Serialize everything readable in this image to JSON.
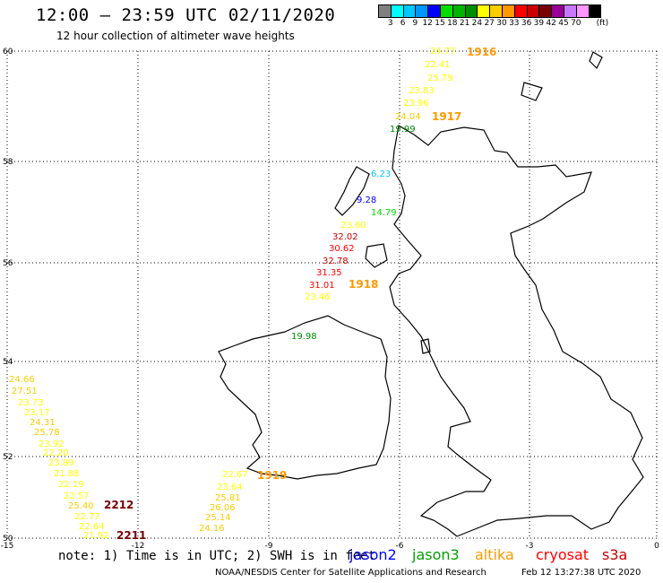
{
  "header": {
    "title": "12:00 – 23:59 UTC 02/11/2020",
    "subtitle": "12 hour collection of altimeter wave heights"
  },
  "legend": {
    "unit": "(ft)",
    "levels": [
      {
        "label": "",
        "color": "#7f7f7f"
      },
      {
        "label": "3",
        "color": "#00ffff"
      },
      {
        "label": "6",
        "color": "#00c8ff"
      },
      {
        "label": "9",
        "color": "#0096ff"
      },
      {
        "label": "12",
        "color": "#0000ff"
      },
      {
        "label": "15",
        "color": "#00e000"
      },
      {
        "label": "18",
        "color": "#00b400"
      },
      {
        "label": "21",
        "color": "#008c00"
      },
      {
        "label": "24",
        "color": "#ffff00"
      },
      {
        "label": "27",
        "color": "#ffcc00"
      },
      {
        "label": "30",
        "color": "#ff9900"
      },
      {
        "label": "33",
        "color": "#ff0000"
      },
      {
        "label": "36",
        "color": "#c80000"
      },
      {
        "label": "39",
        "color": "#780000"
      },
      {
        "label": "42",
        "color": "#960096"
      },
      {
        "label": "45",
        "color": "#c878ff"
      },
      {
        "label": "70",
        "color": "#ff96ff"
      },
      {
        "label": "",
        "color": "#000000"
      }
    ]
  },
  "map": {
    "lat_ticks": [
      "60",
      "58",
      "56",
      "54",
      "52",
      "50"
    ],
    "lon_ticks": [
      "-15",
      "-12",
      "-9",
      "-6",
      "-3",
      "0"
    ],
    "pass_labels": [
      {
        "text": "1916",
        "color": "#ff9900"
      },
      {
        "text": "1917",
        "color": "#ff9900"
      },
      {
        "text": "1918",
        "color": "#ff9900"
      },
      {
        "text": "1919",
        "color": "#ff9900"
      },
      {
        "text": "2212",
        "color": "#780000"
      },
      {
        "text": "2211",
        "color": "#780000"
      }
    ],
    "wave_labels": [
      {
        "text": "24.77",
        "color": "#ffff00"
      },
      {
        "text": "22.41",
        "color": "#ffff00"
      },
      {
        "text": "25.79",
        "color": "#ffff00"
      },
      {
        "text": "23.83",
        "color": "#ffff00"
      },
      {
        "text": "23.96",
        "color": "#ffff00"
      },
      {
        "text": "24.04",
        "color": "#ffcc00"
      },
      {
        "text": "19.99",
        "color": "#008c00"
      },
      {
        "text": "6.23",
        "color": "#00c8ff"
      },
      {
        "text": "9.28",
        "color": "#0000ff"
      },
      {
        "text": "14.79",
        "color": "#00e000"
      },
      {
        "text": "23.60",
        "color": "#ffff00"
      },
      {
        "text": "32.02",
        "color": "#c80000"
      },
      {
        "text": "30.62",
        "color": "#ff0000"
      },
      {
        "text": "32.78",
        "color": "#c80000"
      },
      {
        "text": "31.35",
        "color": "#ff0000"
      },
      {
        "text": "31.01",
        "color": "#ff0000"
      },
      {
        "text": "23.46",
        "color": "#ffff00"
      },
      {
        "text": "19.98",
        "color": "#008c00"
      },
      {
        "text": "24.66",
        "color": "#ffcc00"
      },
      {
        "text": "27.51",
        "color": "#ffcc00"
      },
      {
        "text": "23.73",
        "color": "#ffff00"
      },
      {
        "text": "23.17",
        "color": "#ffff00"
      },
      {
        "text": "24.31",
        "color": "#ffcc00"
      },
      {
        "text": "25.78",
        "color": "#ffcc00"
      },
      {
        "text": "23.92",
        "color": "#ffff00"
      },
      {
        "text": "22.20",
        "color": "#ffff00"
      },
      {
        "text": "23.89",
        "color": "#ffff00"
      },
      {
        "text": "21.88",
        "color": "#ffff00"
      },
      {
        "text": "22.19",
        "color": "#ffff00"
      },
      {
        "text": "22.57",
        "color": "#ffff00"
      },
      {
        "text": "25.40",
        "color": "#ffcc00"
      },
      {
        "text": "22.77",
        "color": "#ffff00"
      },
      {
        "text": "22.64",
        "color": "#ffff00"
      },
      {
        "text": "21.92",
        "color": "#ffff00"
      },
      {
        "text": "22.67",
        "color": "#ffff00"
      },
      {
        "text": "23.64",
        "color": "#ffff00"
      },
      {
        "text": "25.81",
        "color": "#ffcc00"
      },
      {
        "text": "26.06",
        "color": "#ffcc00"
      },
      {
        "text": "25.14",
        "color": "#ffcc00"
      },
      {
        "text": "24.16",
        "color": "#ffcc00"
      }
    ]
  },
  "footer": {
    "note": "note: 1) Time is in UTC; 2) SWH is in feet",
    "credit": "NOAA/NESDIS Center for Satellite Applications and Research",
    "date": "Feb 12 13:27:38 UTC 2020",
    "satellites": [
      {
        "name": "jason2",
        "color": "#0000ff"
      },
      {
        "name": "jason3",
        "color": "#00a000"
      },
      {
        "name": "altika",
        "color": "#ff9900"
      },
      {
        "name": "cryosat",
        "color": "#ff0000"
      },
      {
        "name": "s3a",
        "color": "#c80000"
      }
    ]
  }
}
